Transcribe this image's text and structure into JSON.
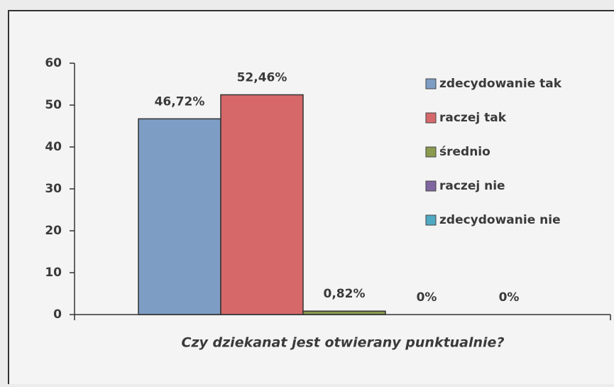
{
  "chart_data": {
    "type": "bar",
    "xlabel": "Czy dziekanat jest otwierany punktualnie?",
    "series": [
      {
        "name": "zdecydowanie tak",
        "color": "#7d9dc4",
        "values": [
          46.72
        ],
        "value_labels": [
          "46,72%"
        ]
      },
      {
        "name": "raczej tak",
        "color": "#d6686a",
        "values": [
          52.46
        ],
        "value_labels": [
          "52,46%"
        ]
      },
      {
        "name": "średnio",
        "color": "#8a9a4e",
        "values": [
          0.82
        ],
        "value_labels": [
          "0,82%"
        ]
      },
      {
        "name": "raczej nie",
        "color": "#8066a0",
        "values": [
          0
        ],
        "value_labels": [
          "0%"
        ]
      },
      {
        "name": "zdecydowanie nie",
        "color": "#4fa9c2",
        "values": [
          0
        ],
        "value_labels": [
          "0%"
        ]
      }
    ],
    "ylim": [
      0,
      60
    ],
    "yticks": [
      0,
      10,
      20,
      30,
      40,
      50,
      60
    ],
    "legend": "right"
  }
}
